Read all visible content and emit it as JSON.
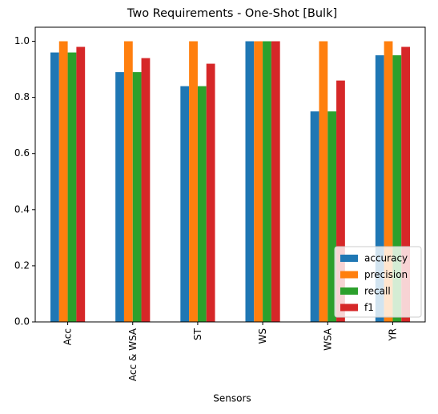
{
  "chart_data": {
    "type": "bar",
    "title": "Two Requirements - One-Shot [Bulk]",
    "xlabel": "Sensors",
    "ylabel": "",
    "ylim": [
      0,
      1.05
    ],
    "yticks": [
      "0.0",
      "0.2",
      "0.4",
      "0.6",
      "0.8",
      "1.0"
    ],
    "categories": [
      "Acc",
      "Acc & WSA",
      "ST",
      "WS",
      "WSA",
      "YR"
    ],
    "series": [
      {
        "name": "accuracy",
        "color": "#1f77b4",
        "values": [
          0.96,
          0.89,
          0.84,
          1.0,
          0.75,
          0.95
        ]
      },
      {
        "name": "precision",
        "color": "#ff7f0e",
        "values": [
          1.0,
          1.0,
          1.0,
          1.0,
          1.0,
          1.0
        ]
      },
      {
        "name": "recall",
        "color": "#2ca02c",
        "values": [
          0.96,
          0.89,
          0.84,
          1.0,
          0.75,
          0.95
        ]
      },
      {
        "name": "f1",
        "color": "#d62728",
        "values": [
          0.98,
          0.94,
          0.92,
          1.0,
          0.86,
          0.98
        ]
      }
    ],
    "grid": false,
    "legend_position": "lower-right"
  }
}
